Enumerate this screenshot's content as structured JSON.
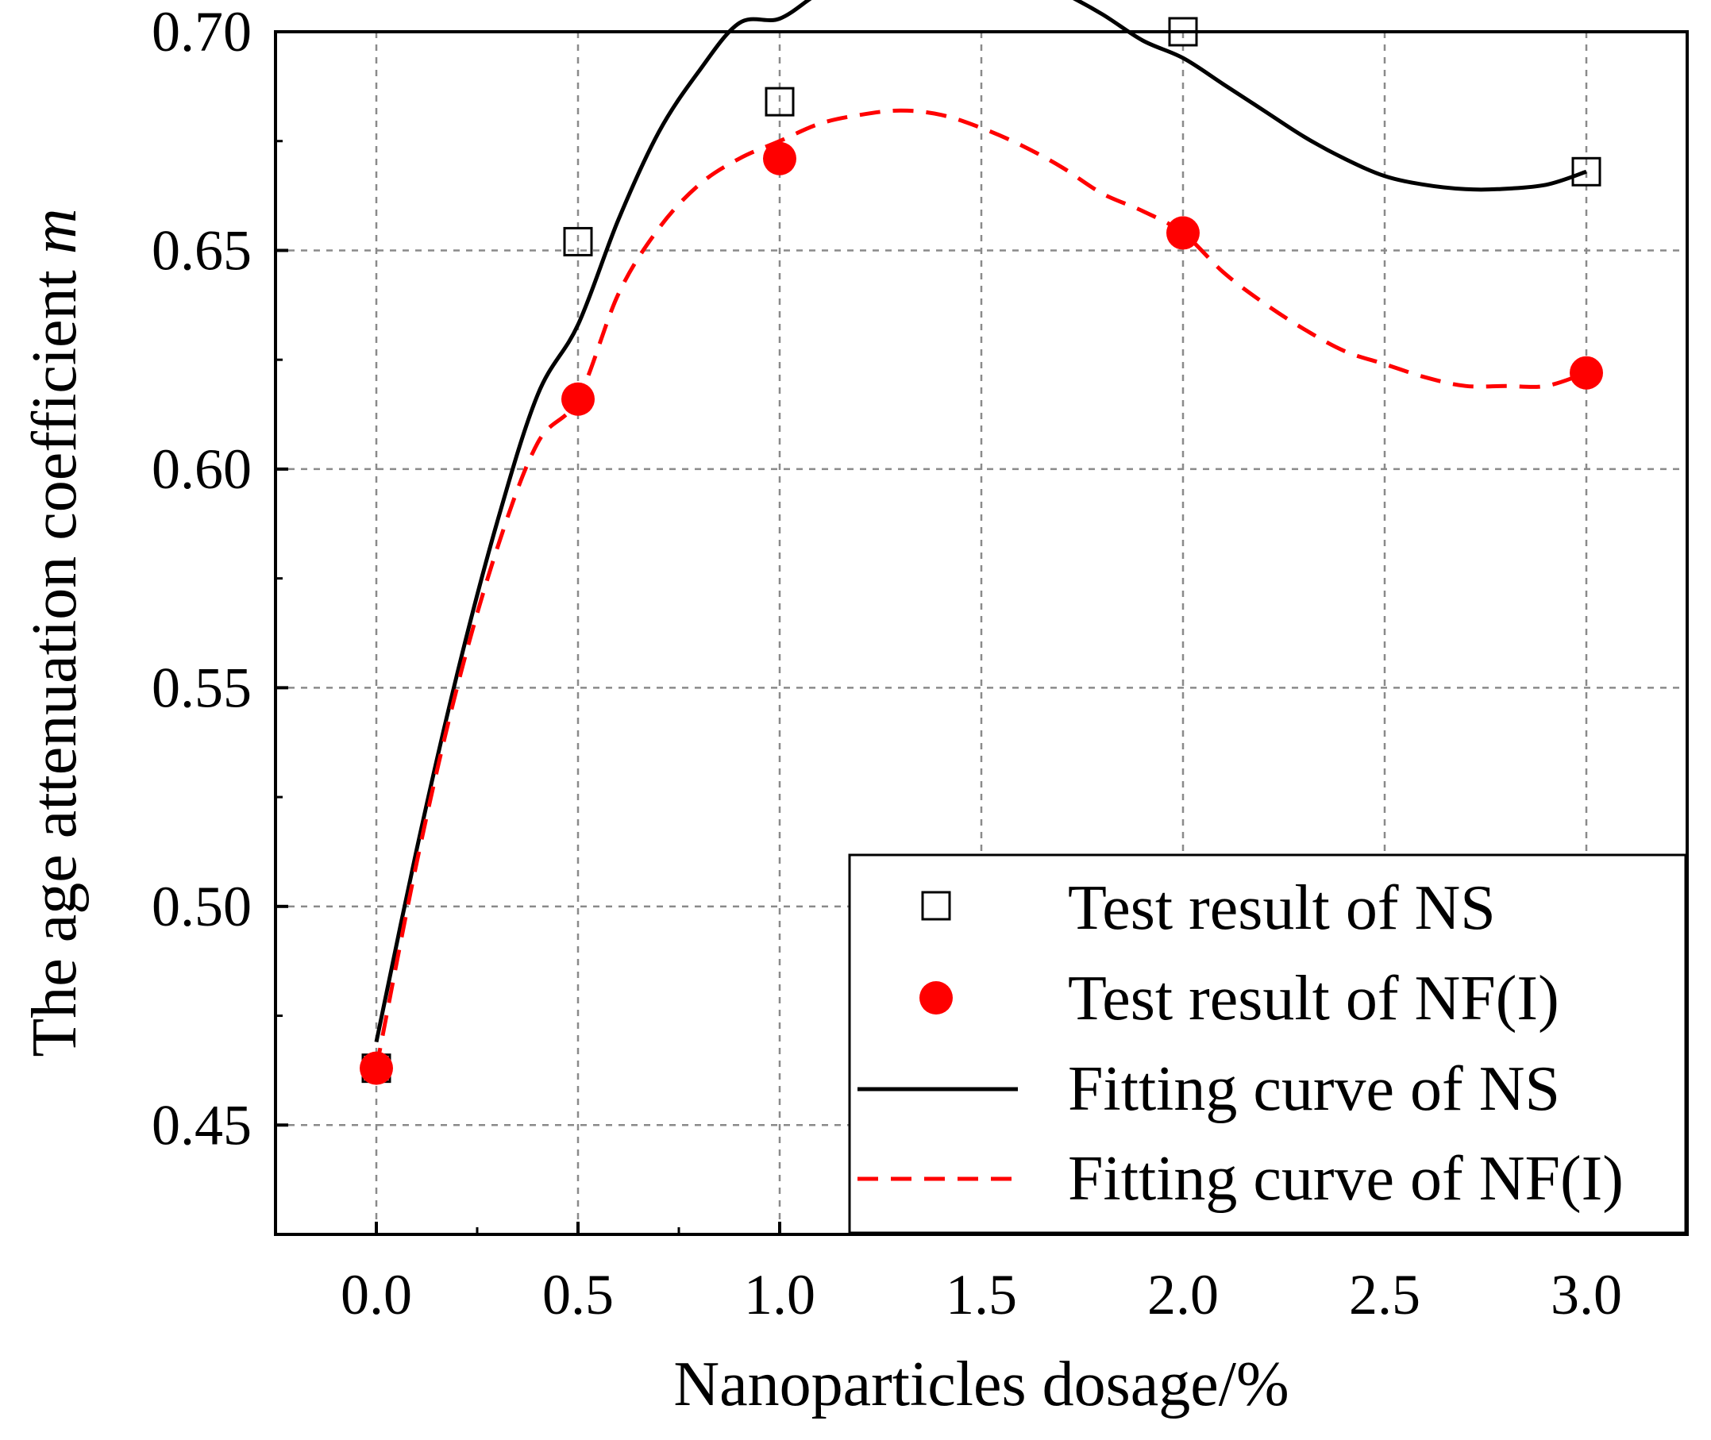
{
  "chart_data": {
    "type": "scatter",
    "xlabel": "Nanoparticles dosage/%",
    "ylabel_main": "The age attenuation coefficient ",
    "ylabel_italic": "m",
    "xlim": [
      -0.25,
      3.25
    ],
    "ylim": [
      0.425,
      0.7
    ],
    "x_ticks": [
      0.0,
      0.5,
      1.0,
      1.5,
      2.0,
      2.5,
      3.0
    ],
    "x_tick_labels": [
      "0.0",
      "0.5",
      "1.0",
      "1.5",
      "2.0",
      "2.5",
      "3.0"
    ],
    "y_ticks": [
      0.45,
      0.5,
      0.55,
      0.6,
      0.65,
      0.7
    ],
    "y_tick_labels": [
      "0.45",
      "0.50",
      "0.55",
      "0.60",
      "0.65",
      "0.70"
    ],
    "grid": true,
    "legend_position": "bottom-right",
    "series": [
      {
        "name": "Test result of NS",
        "kind": "points",
        "marker": "open-square",
        "color": "#000000",
        "x": [
          0.0,
          0.5,
          1.0,
          2.0,
          3.0
        ],
        "y": [
          0.463,
          0.652,
          0.684,
          0.7,
          0.668
        ]
      },
      {
        "name": "Test result of NF(I)",
        "kind": "points",
        "marker": "filled-circle",
        "color": "#ff0000",
        "x": [
          0.0,
          0.5,
          1.0,
          2.0,
          3.0
        ],
        "y": [
          0.463,
          0.616,
          0.671,
          0.654,
          0.622
        ]
      },
      {
        "name": "Fitting curve of NS",
        "kind": "line",
        "style": "solid",
        "color": "#000000",
        "x": [
          0.0,
          0.1,
          0.2,
          0.3,
          0.4,
          0.5,
          0.6,
          0.7,
          0.8,
          0.9,
          1.0,
          1.1,
          1.2,
          1.3,
          1.37,
          1.5,
          1.6,
          1.7,
          1.8,
          1.9,
          2.0,
          2.1,
          2.2,
          2.3,
          2.4,
          2.5,
          2.6,
          2.7,
          2.78,
          2.9,
          3.0
        ],
        "y": [
          0.469,
          0.513,
          0.553,
          0.588,
          0.617,
          0.633,
          0.657,
          0.677,
          0.691,
          0.702,
          0.703,
          0.709,
          0.713,
          0.715,
          0.716,
          0.715,
          0.713,
          0.709,
          0.704,
          0.698,
          0.694,
          0.688,
          0.682,
          0.676,
          0.671,
          0.667,
          0.665,
          0.664,
          0.664,
          0.665,
          0.668
        ]
      },
      {
        "name": "Fitting curve of NF(I)",
        "kind": "line",
        "style": "dashed",
        "color": "#ff0000",
        "x": [
          0.0,
          0.1,
          0.2,
          0.3,
          0.4,
          0.5,
          0.6,
          0.7,
          0.8,
          0.9,
          1.0,
          1.1,
          1.2,
          1.3,
          1.4,
          1.5,
          1.6,
          1.7,
          1.8,
          1.9,
          2.0,
          2.1,
          2.2,
          2.3,
          2.4,
          2.5,
          2.6,
          2.7,
          2.8,
          2.9,
          3.0
        ],
        "y": [
          0.463,
          0.51,
          0.55,
          0.582,
          0.606,
          0.616,
          0.64,
          0.655,
          0.665,
          0.671,
          0.675,
          0.679,
          0.681,
          0.682,
          0.681,
          0.678,
          0.674,
          0.669,
          0.663,
          0.659,
          0.654,
          0.645,
          0.638,
          0.632,
          0.627,
          0.624,
          0.621,
          0.619,
          0.619,
          0.619,
          0.622
        ]
      }
    ]
  }
}
